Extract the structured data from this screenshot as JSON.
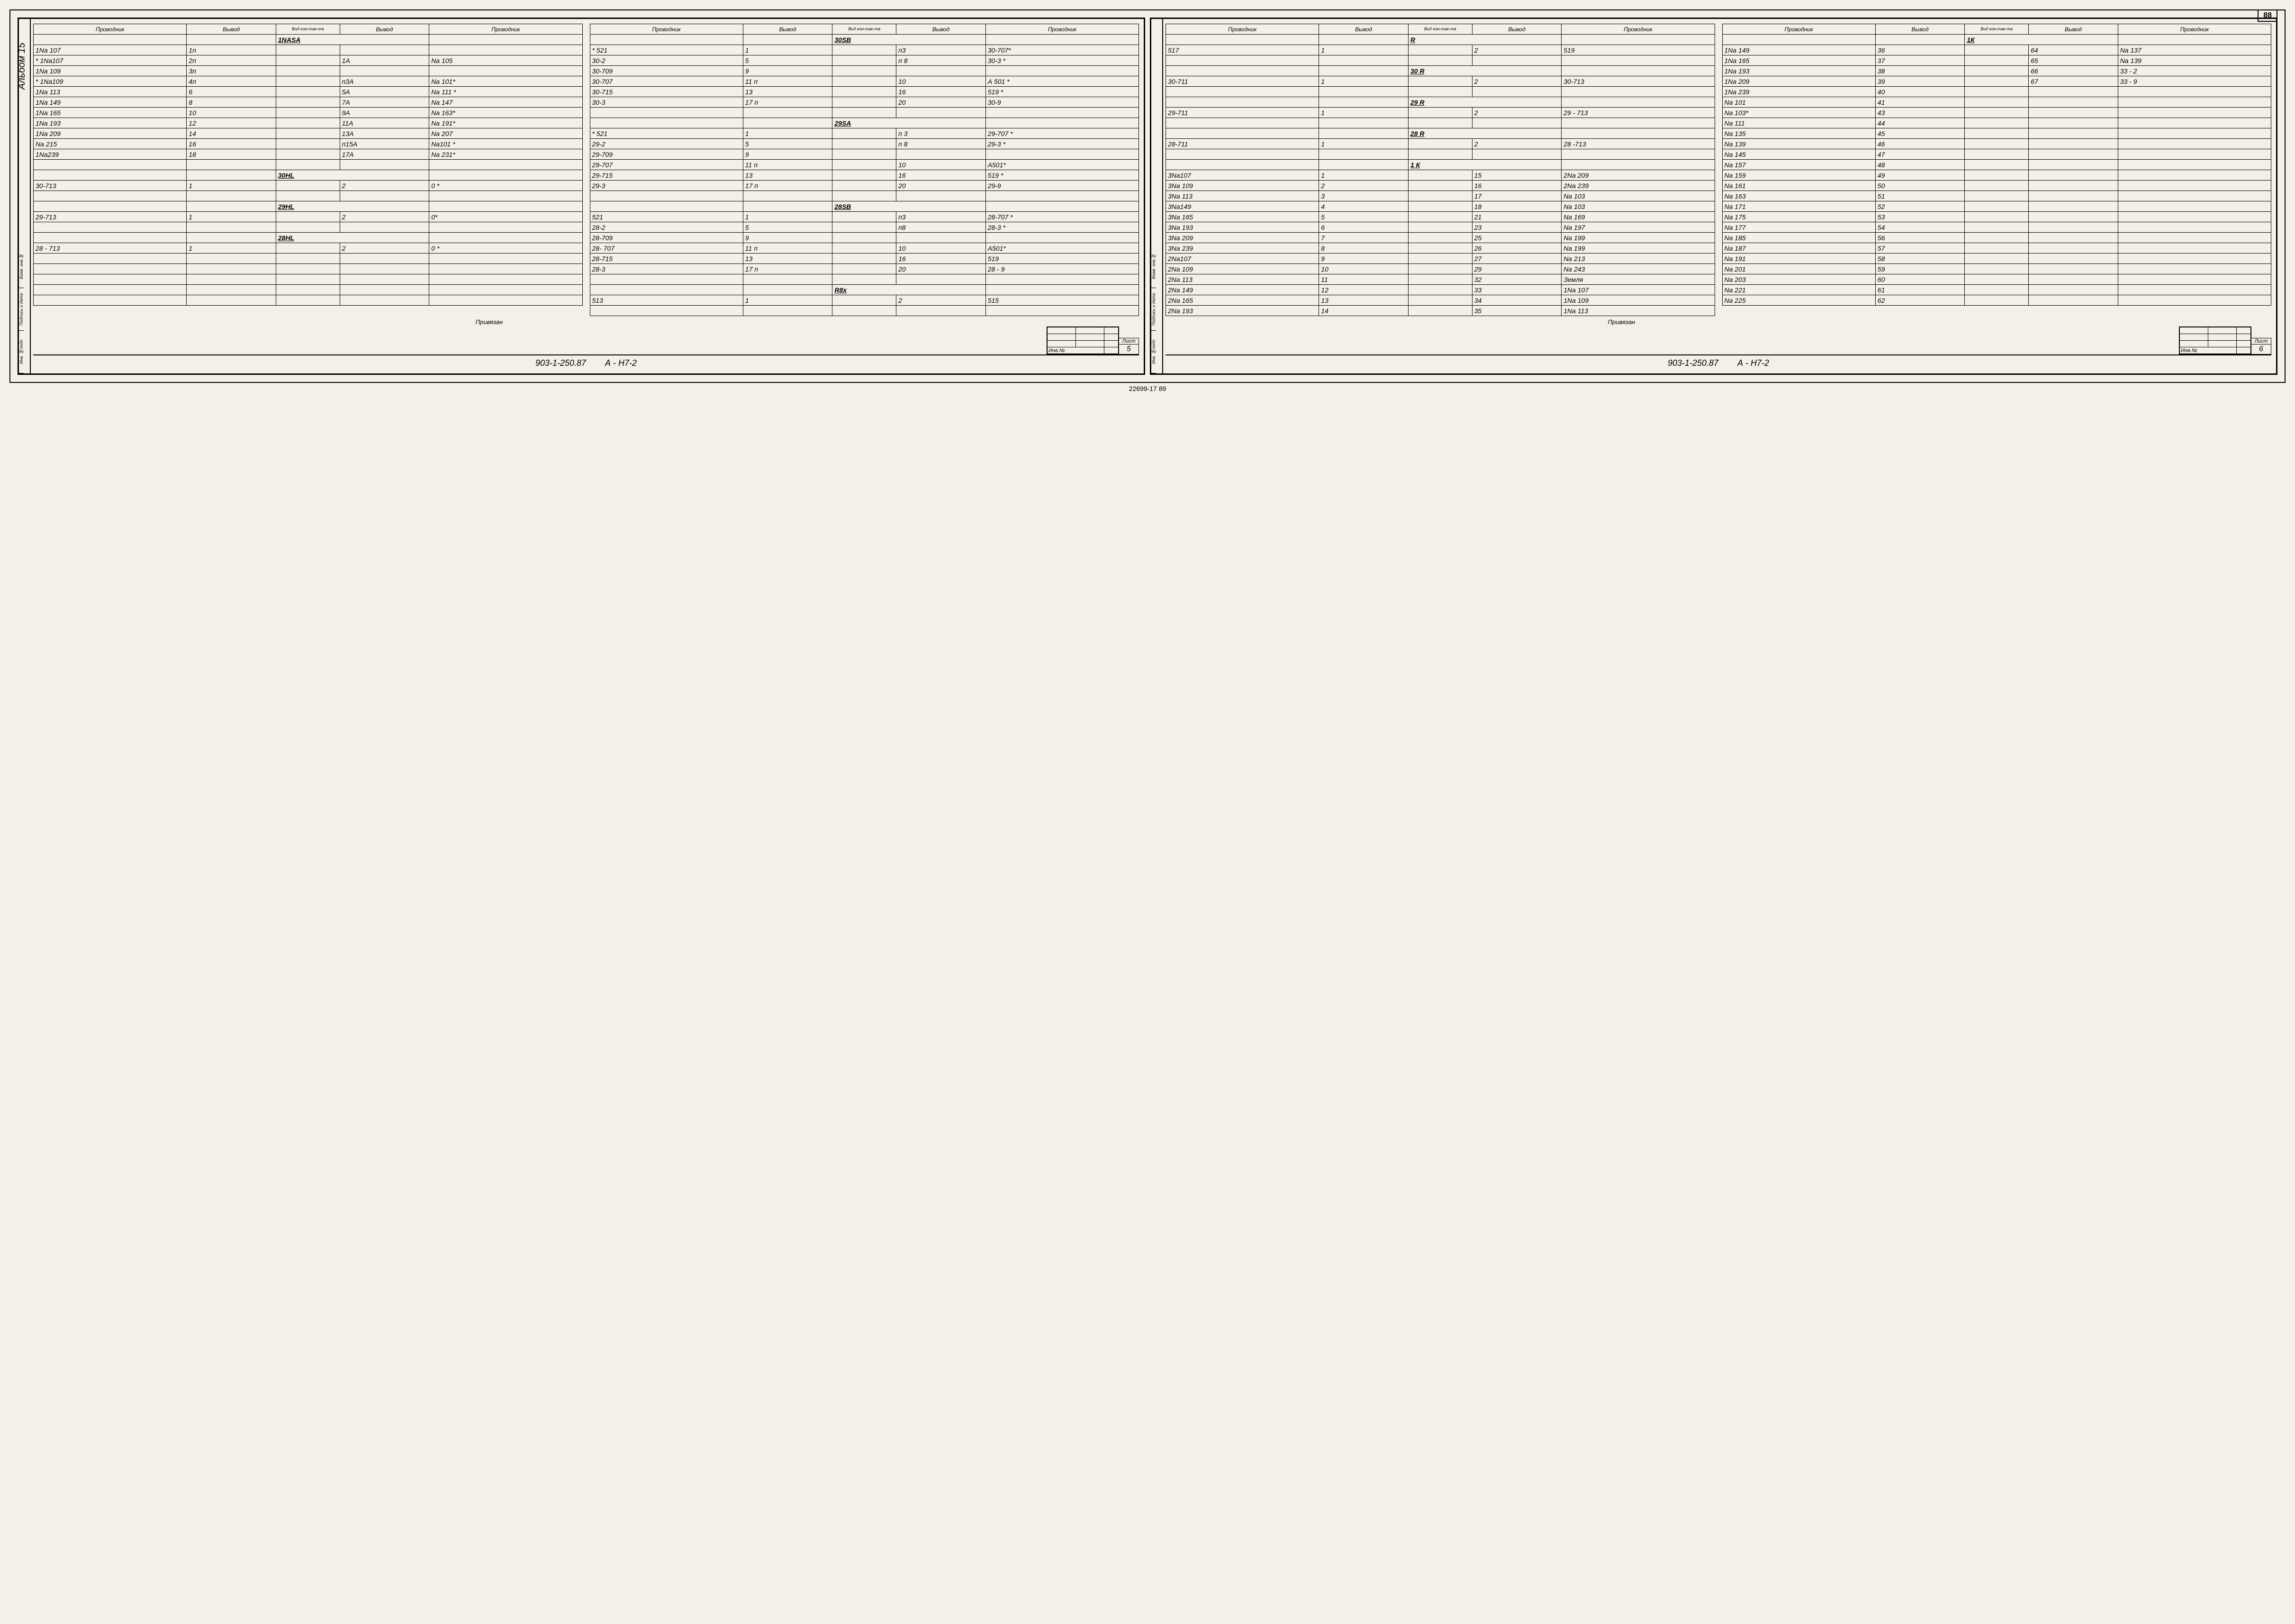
{
  "page_number_top": "88",
  "album_label": "Альбом 15",
  "headers": [
    "Проводник",
    "Вывод",
    "Вид кон-так-та",
    "Вывод",
    "Проводник"
  ],
  "binding_labels": [
    "Инв. №подл",
    "Подпись и дата",
    "Взам. инв.№"
  ],
  "privyazan_label": "Привязан",
  "inv_label": "Инв.№",
  "sheet_label": "Лист",
  "drawing_number": "903-1-250.87",
  "drawing_code": "А - Н7-2",
  "bottom_ref": "22699-17   89",
  "left_page": {
    "sheet": "5",
    "tables": [
      [
        {
          "section": "1NASA"
        },
        {
          "r": [
            "1Nа 107",
            "1п",
            "",
            "",
            ""
          ]
        },
        {
          "r": [
            "* 1Nа107",
            "2п",
            "",
            "1А",
            "Nа 105"
          ]
        },
        {
          "r": [
            "1Nа 109",
            "3п",
            "",
            "",
            ""
          ]
        },
        {
          "r": [
            "* 1Nа109",
            "4п",
            "",
            "п3А",
            "Nа 101*"
          ]
        },
        {
          "r": [
            "1Nа 113",
            "6",
            "",
            "5А",
            "Nа 111 *"
          ]
        },
        {
          "r": [
            "1Nа 149",
            "8",
            "",
            "7А",
            "Nа 147"
          ]
        },
        {
          "r": [
            "1Nа 165",
            "10",
            "",
            "9А",
            "Nа 163*"
          ]
        },
        {
          "r": [
            "1Nа 193",
            "12",
            "",
            "11А",
            "Nа 191*"
          ]
        },
        {
          "r": [
            "1Nа 209",
            "14",
            "",
            "13А",
            "Nа 207"
          ]
        },
        {
          "r": [
            "Nа 215",
            "16",
            "",
            "п15А",
            "Nа101 *"
          ]
        },
        {
          "r": [
            "1Nа239",
            "18",
            "",
            "17А",
            "Nа 231*"
          ]
        },
        {
          "r": [
            "",
            "",
            "",
            "",
            ""
          ]
        },
        {
          "section": "30НL"
        },
        {
          "r": [
            "30-713",
            "1",
            "",
            "2",
            "0  *"
          ]
        },
        {
          "r": [
            "",
            "",
            "",
            "",
            ""
          ]
        },
        {
          "section": "29НL"
        },
        {
          "r": [
            "29-713",
            "1",
            "",
            "2",
            "0*"
          ]
        },
        {
          "r": [
            "",
            "",
            "",
            "",
            ""
          ]
        },
        {
          "section": "28НL"
        },
        {
          "r": [
            "28 - 713",
            "1",
            "",
            "2",
            "0 *"
          ]
        },
        {
          "r": [
            "",
            "",
            "",
            "",
            ""
          ]
        },
        {
          "r": [
            "",
            "",
            "",
            "",
            ""
          ]
        },
        {
          "r": [
            "",
            "",
            "",
            "",
            ""
          ]
        },
        {
          "r": [
            "",
            "",
            "",
            "",
            ""
          ]
        },
        {
          "r": [
            "",
            "",
            "",
            "",
            ""
          ]
        }
      ],
      [
        {
          "section": "30SВ"
        },
        {
          "r": [
            "* 521",
            "1",
            "",
            "п3",
            "30-707*"
          ]
        },
        {
          "r": [
            "30-2",
            "5",
            "",
            "п 8",
            "30-3 *"
          ]
        },
        {
          "r": [
            "30-709",
            "9",
            "",
            "",
            ""
          ]
        },
        {
          "r": [
            "30-707",
            "11 п",
            "",
            "10",
            "А 501 *"
          ]
        },
        {
          "r": [
            "30-715",
            "13",
            "",
            "16",
            "519 *"
          ]
        },
        {
          "r": [
            "30-3",
            "17 п",
            "",
            "20",
            "30-9"
          ]
        },
        {
          "r": [
            "",
            "",
            "",
            "",
            ""
          ]
        },
        {
          "section": "29SА"
        },
        {
          "r": [
            "* 521",
            "1",
            "",
            "п 3",
            "29-707 *"
          ]
        },
        {
          "r": [
            "29-2",
            "5",
            "",
            "п 8",
            "29-3 *"
          ]
        },
        {
          "r": [
            "29-709",
            "9",
            "",
            "",
            ""
          ]
        },
        {
          "r": [
            "29-707",
            "11 п",
            "",
            "10",
            "А501*"
          ]
        },
        {
          "r": [
            "29-715",
            "13",
            "",
            "16",
            "519 *"
          ]
        },
        {
          "r": [
            "29-3",
            "17 п",
            "",
            "20",
            "29-9"
          ]
        },
        {
          "r": [
            "",
            "",
            "",
            "",
            ""
          ]
        },
        {
          "section": "28SВ"
        },
        {
          "r": [
            "521",
            "1",
            "",
            "п3",
            "28-707 *"
          ]
        },
        {
          "r": [
            "28-2",
            "5",
            "",
            "п8",
            "28-3 *"
          ]
        },
        {
          "r": [
            "28-709",
            "9",
            "",
            "",
            ""
          ]
        },
        {
          "r": [
            "28- 707",
            "11 п",
            "",
            "10",
            "А501*"
          ]
        },
        {
          "r": [
            "28-715",
            "13",
            "",
            "16",
            "519"
          ]
        },
        {
          "r": [
            "28-3",
            "17 п",
            "",
            "20",
            "28 - 9"
          ]
        },
        {
          "r": [
            "",
            "",
            "",
            "",
            ""
          ]
        },
        {
          "section": "R8х"
        },
        {
          "r": [
            "513",
            "1",
            "",
            "2",
            "515"
          ]
        },
        {
          "r": [
            "",
            "",
            "",
            "",
            ""
          ]
        }
      ]
    ]
  },
  "right_page": {
    "sheet": "6",
    "tables": [
      [
        {
          "section": "R"
        },
        {
          "r": [
            "517",
            "1",
            "",
            "2",
            "519"
          ]
        },
        {
          "r": [
            "",
            "",
            "",
            "",
            ""
          ]
        },
        {
          "section": "30 R"
        },
        {
          "r": [
            "30-711",
            "1",
            "",
            "2",
            "30-713"
          ]
        },
        {
          "r": [
            "",
            "",
            "",
            "",
            ""
          ]
        },
        {
          "section": "29 R"
        },
        {
          "r": [
            "29-711",
            "1",
            "",
            "2",
            "29 - 713"
          ]
        },
        {
          "r": [
            "",
            "",
            "",
            "",
            ""
          ]
        },
        {
          "section": "28 R"
        },
        {
          "r": [
            "28-711",
            "1",
            "",
            "2",
            "28 -713"
          ]
        },
        {
          "r": [
            "",
            "",
            "",
            "",
            ""
          ]
        },
        {
          "section": "1 К"
        },
        {
          "r": [
            "3Nа107",
            "1",
            "",
            "15",
            "2Nа 209"
          ]
        },
        {
          "r": [
            "3Nа 109",
            "2",
            "",
            "16",
            "2Nа 239"
          ]
        },
        {
          "r": [
            "3Nа 113",
            "3",
            "",
            "17",
            "Nа 103"
          ]
        },
        {
          "r": [
            "3Nа149",
            "4",
            "",
            "18",
            "Nа 103"
          ]
        },
        {
          "r": [
            "3Nа 165",
            "5",
            "",
            "21",
            "Nа 169"
          ]
        },
        {
          "r": [
            "3Nа 193",
            "6",
            "",
            "23",
            "Nа 197"
          ]
        },
        {
          "r": [
            "3Nа 209",
            "7",
            "",
            "25",
            "Nа 199"
          ]
        },
        {
          "r": [
            "3Nа 239",
            "8",
            "",
            "26",
            "Nа 199"
          ]
        },
        {
          "r": [
            "2Nа107",
            "9",
            "",
            "27",
            "Nа 213"
          ]
        },
        {
          "r": [
            "2Nа 109",
            "10",
            "",
            "29",
            "Nа 243"
          ]
        },
        {
          "r": [
            "2Nа 113",
            "11",
            "",
            "32",
            "Земля"
          ]
        },
        {
          "r": [
            "2Nа 149",
            "12",
            "",
            "33",
            "1Nа 107"
          ]
        },
        {
          "r": [
            "2Nа 165",
            "13",
            "",
            "34",
            "1Nа 109"
          ]
        },
        {
          "r": [
            "2Nа 193",
            "14",
            "",
            "35",
            "1Nа 113"
          ]
        }
      ],
      [
        {
          "section": "1К"
        },
        {
          "r": [
            "1Nа 149",
            "36",
            "",
            "64",
            "Nа 137"
          ]
        },
        {
          "r": [
            "1Nа 165",
            "37",
            "",
            "65",
            "Nа 139"
          ]
        },
        {
          "r": [
            "1Nа 193",
            "38",
            "",
            "66",
            "33 - 2"
          ]
        },
        {
          "r": [
            "1Nа 209",
            "39",
            "",
            "67",
            "33 - 9"
          ]
        },
        {
          "r": [
            "1Nа 239",
            "40",
            "",
            "",
            ""
          ]
        },
        {
          "r": [
            "Nа 101",
            "41",
            "",
            "",
            ""
          ]
        },
        {
          "r": [
            "Nа 103*",
            "43",
            "",
            "",
            ""
          ]
        },
        {
          "r": [
            "Nа 111",
            "44",
            "",
            "",
            ""
          ]
        },
        {
          "r": [
            "Nа 135",
            "45",
            "",
            "",
            ""
          ]
        },
        {
          "r": [
            "Nа 139",
            "46",
            "",
            "",
            ""
          ]
        },
        {
          "r": [
            "Nа 145",
            "47",
            "",
            "",
            ""
          ]
        },
        {
          "r": [
            "Nа 157",
            "48",
            "",
            "",
            ""
          ]
        },
        {
          "r": [
            "Nа 159",
            "49",
            "",
            "",
            ""
          ]
        },
        {
          "r": [
            "Nа 161",
            "50",
            "",
            "",
            ""
          ]
        },
        {
          "r": [
            "Nа 163",
            "51",
            "",
            "",
            ""
          ]
        },
        {
          "r": [
            "Nа 171",
            "52",
            "",
            "",
            ""
          ]
        },
        {
          "r": [
            "Nа 175",
            "53",
            "",
            "",
            ""
          ]
        },
        {
          "r": [
            "Nа 177",
            "54",
            "",
            "",
            ""
          ]
        },
        {
          "r": [
            "Nа 185",
            "56",
            "",
            "",
            ""
          ]
        },
        {
          "r": [
            "Nа 187",
            "57",
            "",
            "",
            ""
          ]
        },
        {
          "r": [
            "Nа 191",
            "58",
            "",
            "",
            ""
          ]
        },
        {
          "r": [
            "Nа 201",
            "59",
            "",
            "",
            ""
          ]
        },
        {
          "r": [
            "Nа 203",
            "60",
            "",
            "",
            ""
          ]
        },
        {
          "r": [
            "Nа 221",
            "61",
            "",
            "",
            ""
          ]
        },
        {
          "r": [
            "Nа 225",
            "62",
            "",
            "",
            ""
          ]
        }
      ]
    ]
  }
}
